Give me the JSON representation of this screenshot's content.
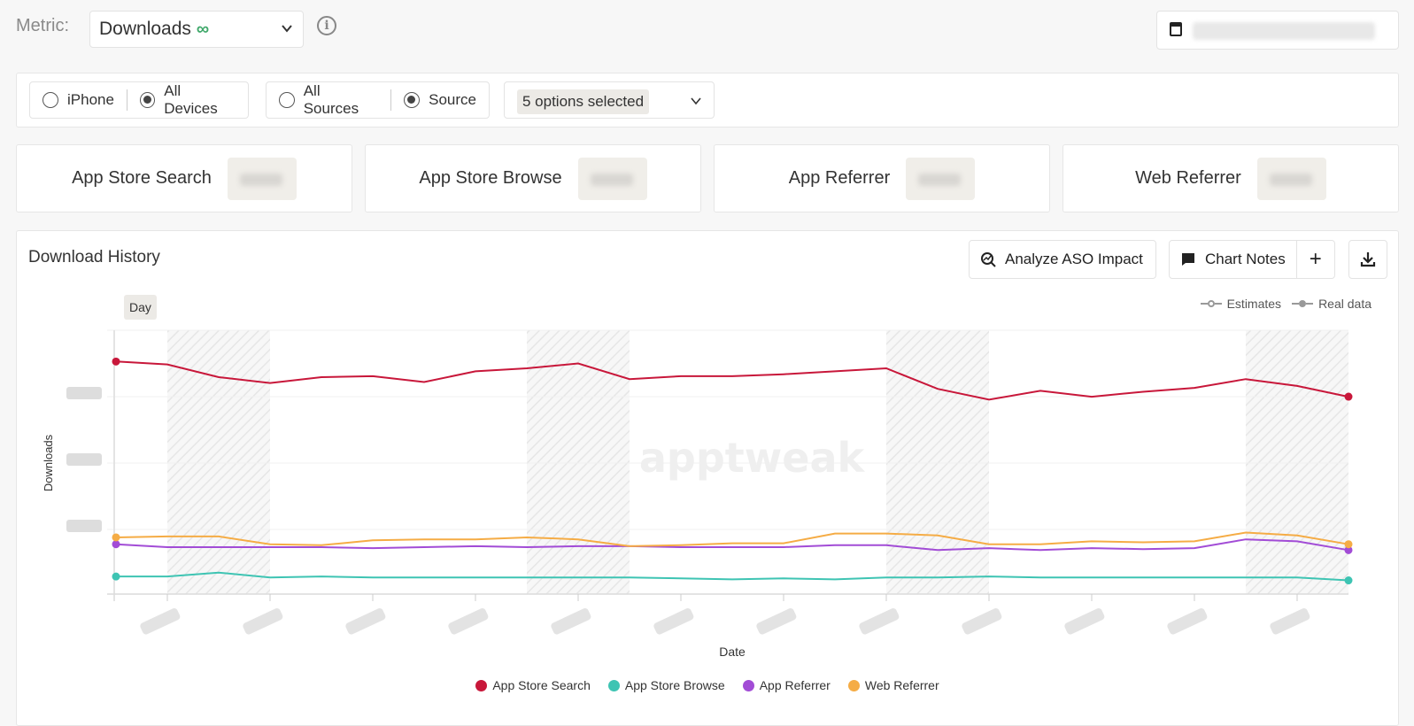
{
  "metric": {
    "label": "Metric:",
    "value": "Downloads"
  },
  "filters": {
    "device_options": [
      "iPhone",
      "All Devices"
    ],
    "device_selected": "All Devices",
    "source_options": [
      "All Sources",
      "Source"
    ],
    "source_selected": "Source",
    "sources_dropdown": "5 options selected"
  },
  "kpis": [
    {
      "name": "App Store Search"
    },
    {
      "name": "App Store Browse"
    },
    {
      "name": "App Referrer"
    },
    {
      "name": "Web Referrer"
    }
  ],
  "panel": {
    "title": "Download History",
    "analyze_button": "Analyze ASO Impact",
    "notes_button": "Chart Notes",
    "plus": "+",
    "day_tab": "Day",
    "estimates_label": "Estimates",
    "real_label": "Real data",
    "watermark": "apptweak"
  },
  "chart_data": {
    "type": "line",
    "xlabel": "Date",
    "ylabel": "Downloads",
    "y_scale": "unlabeled (tick labels obscured)",
    "grid": true,
    "legend_position": "bottom",
    "series": [
      {
        "name": "App Store Search",
        "color": "#c8173a",
        "values": [
          2.38,
          2.35,
          2.22,
          2.16,
          2.22,
          2.23,
          2.17,
          2.28,
          2.31,
          2.36,
          2.2,
          2.23,
          2.23,
          2.25,
          2.28,
          2.31,
          2.1,
          1.99,
          2.08,
          2.02,
          2.07,
          2.11,
          2.2,
          2.13,
          2.02
        ]
      },
      {
        "name": "App Store Browse",
        "color": "#3ec4b3",
        "values": [
          0.18,
          0.18,
          0.22,
          0.17,
          0.18,
          0.17,
          0.17,
          0.17,
          0.17,
          0.17,
          0.17,
          0.16,
          0.15,
          0.16,
          0.15,
          0.17,
          0.17,
          0.18,
          0.17,
          0.17,
          0.17,
          0.17,
          0.17,
          0.17,
          0.14
        ]
      },
      {
        "name": "App Referrer",
        "color": "#a24cd6",
        "values": [
          0.51,
          0.48,
          0.48,
          0.48,
          0.48,
          0.47,
          0.48,
          0.49,
          0.48,
          0.49,
          0.49,
          0.48,
          0.48,
          0.48,
          0.5,
          0.5,
          0.45,
          0.47,
          0.45,
          0.47,
          0.46,
          0.47,
          0.56,
          0.54,
          0.45
        ]
      },
      {
        "name": "Web Referrer",
        "color": "#f5ac45",
        "values": [
          0.58,
          0.59,
          0.59,
          0.51,
          0.5,
          0.55,
          0.56,
          0.56,
          0.58,
          0.56,
          0.49,
          0.5,
          0.52,
          0.52,
          0.62,
          0.62,
          0.6,
          0.51,
          0.51,
          0.54,
          0.53,
          0.54,
          0.63,
          0.6,
          0.51
        ]
      }
    ],
    "ylim": [
      0,
      2.7
    ]
  }
}
